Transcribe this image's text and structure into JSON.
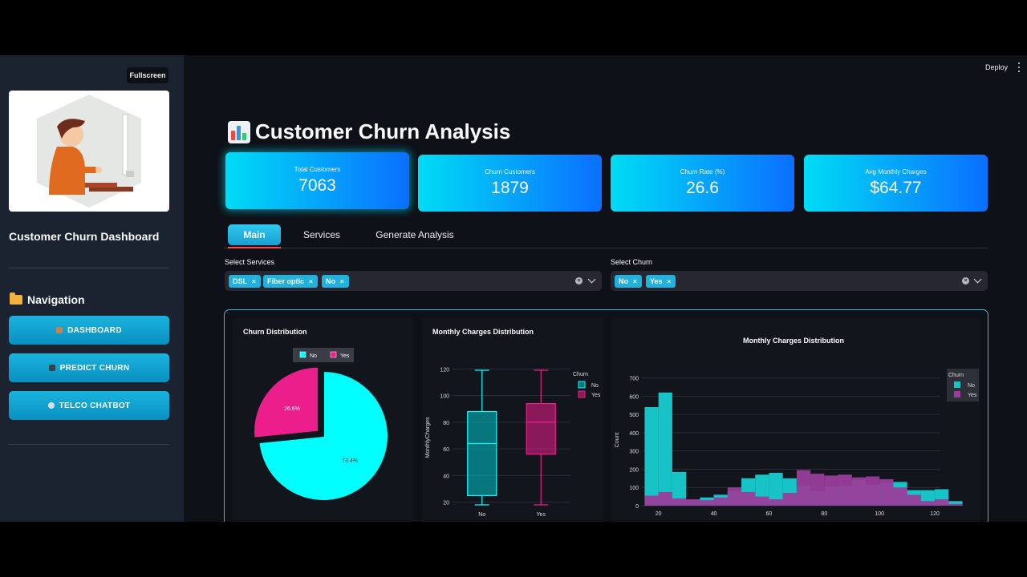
{
  "sidebar": {
    "fullscreen_label": "Fullscreen",
    "title": "Customer Churn Dashboard",
    "nav_heading": "Navigation",
    "nav": [
      {
        "label": "DASHBOARD",
        "icon": "house-icon"
      },
      {
        "label": "PREDICT CHURN",
        "icon": "detective-icon"
      },
      {
        "label": "TELCO CHATBOT",
        "icon": "robot-icon"
      }
    ]
  },
  "header": {
    "deploy_label": "Deploy",
    "menu_icon": "more-vertical-icon"
  },
  "page": {
    "title": "Customer Churn Analysis",
    "title_icon": "bar-chart-icon"
  },
  "metrics": [
    {
      "label": "Total Customers",
      "value": "7063"
    },
    {
      "label": "Churn Customers",
      "value": "1879"
    },
    {
      "label": "Churn Rate (%)",
      "value": "26.6"
    },
    {
      "label": "Avg Monthly Charges",
      "value": "$64.77"
    }
  ],
  "tabs": [
    {
      "label": "Main",
      "active": true
    },
    {
      "label": "Services",
      "active": false
    },
    {
      "label": "Generate Analysis",
      "active": false
    }
  ],
  "filters": {
    "services": {
      "label": "Select Services",
      "selected": [
        "DSL",
        "Fiber optic",
        "No"
      ]
    },
    "churn": {
      "label": "Select Churn",
      "selected": [
        "No",
        "Yes"
      ]
    }
  },
  "colors": {
    "accent": "#00dcf5",
    "no": "#00ffff",
    "yes": "#ec1e8c",
    "hist_no": "#17c3c6",
    "hist_yes": "#9a3d9b",
    "bg": "#0e1117",
    "sidebar": "#1b2331"
  },
  "chart_data": [
    {
      "type": "pie",
      "title": "Churn Distribution",
      "labels": [
        "No",
        "Yes"
      ],
      "values": [
        73.4,
        26.6
      ],
      "value_labels": [
        "73.4%",
        "26.6%"
      ],
      "legend": "top-center"
    },
    {
      "type": "box",
      "title": "Monthly Charges Distribution",
      "xlabel": "",
      "ylabel": "MonthlyCharges",
      "legend_title": "Churn",
      "categories": [
        "No",
        "Yes"
      ],
      "y_ticks": [
        20,
        40,
        60,
        80,
        100,
        120
      ],
      "ylim": [
        15,
        122
      ],
      "series": [
        {
          "name": "No",
          "min": 18,
          "q1": 25,
          "median": 64,
          "q3": 88,
          "max": 119
        },
        {
          "name": "Yes",
          "min": 18,
          "q1": 56,
          "median": 80,
          "q3": 94,
          "max": 119
        }
      ],
      "grid": true
    },
    {
      "type": "histogram",
      "title": "Monthly Charges Distribution",
      "xlabel": "",
      "ylabel": "Count",
      "legend_title": "Churn",
      "x_ticks": [
        20,
        40,
        60,
        80,
        100,
        120
      ],
      "y_ticks": [
        0,
        100,
        200,
        300,
        400,
        500,
        600,
        700
      ],
      "xlim": [
        14,
        122
      ],
      "ylim": [
        0,
        720
      ],
      "bin_start": 15,
      "bin_width": 5,
      "series": [
        {
          "name": "No",
          "values": [
            540,
            620,
            185,
            30,
            45,
            60,
            80,
            150,
            170,
            180,
            150,
            110,
            80,
            105,
            110,
            140,
            115,
            125,
            130,
            85,
            85,
            90,
            25
          ]
        },
        {
          "name": "Yes",
          "values": [
            55,
            75,
            40,
            35,
            30,
            45,
            100,
            75,
            50,
            35,
            70,
            195,
            175,
            165,
            170,
            155,
            160,
            145,
            100,
            60,
            25,
            35,
            10
          ]
        }
      ],
      "grid": true
    }
  ]
}
